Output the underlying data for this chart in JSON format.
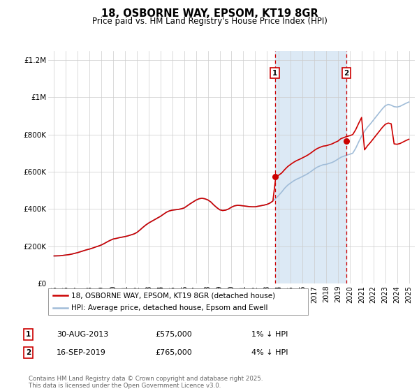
{
  "title": "18, OSBORNE WAY, EPSOM, KT19 8GR",
  "subtitle": "Price paid vs. HM Land Registry's House Price Index (HPI)",
  "title_fontsize": 10.5,
  "subtitle_fontsize": 8.5,
  "ylim": [
    0,
    1250000
  ],
  "xlim": [
    1994.5,
    2025.5
  ],
  "yticks": [
    0,
    200000,
    400000,
    600000,
    800000,
    1000000,
    1200000
  ],
  "ytick_labels": [
    "£0",
    "£200K",
    "£400K",
    "£600K",
    "£800K",
    "£1M",
    "£1.2M"
  ],
  "xticks": [
    1995,
    1996,
    1997,
    1998,
    1999,
    2000,
    2001,
    2002,
    2003,
    2004,
    2005,
    2006,
    2007,
    2008,
    2009,
    2010,
    2011,
    2012,
    2013,
    2014,
    2015,
    2016,
    2017,
    2018,
    2019,
    2020,
    2021,
    2022,
    2023,
    2024,
    2025
  ],
  "background_color": "#ffffff",
  "plot_bg_color": "#ffffff",
  "grid_color": "#cccccc",
  "shaded_region_color": "#dce9f5",
  "hpi_line_color": "#a0bcd8",
  "price_line_color": "#cc0000",
  "sale1_x": 2013.667,
  "sale1_y": 575000,
  "sale1_label": "1",
  "sale2_x": 2019.708,
  "sale2_y": 765000,
  "sale2_label": "2",
  "vline_color": "#cc0000",
  "legend_line1": "18, OSBORNE WAY, EPSOM, KT19 8GR (detached house)",
  "legend_line2": "HPI: Average price, detached house, Epsom and Ewell",
  "annotation1_date": "30-AUG-2013",
  "annotation1_price": "£575,000",
  "annotation1_hpi": "1% ↓ HPI",
  "annotation2_date": "16-SEP-2019",
  "annotation2_price": "£765,000",
  "annotation2_hpi": "4% ↓ HPI",
  "footer": "Contains HM Land Registry data © Crown copyright and database right 2025.\nThis data is licensed under the Open Government Licence v3.0.",
  "hpi_data_x": [
    1995.0,
    1995.25,
    1995.5,
    1995.75,
    1996.0,
    1996.25,
    1996.5,
    1996.75,
    1997.0,
    1997.25,
    1997.5,
    1997.75,
    1998.0,
    1998.25,
    1998.5,
    1998.75,
    1999.0,
    1999.25,
    1999.5,
    1999.75,
    2000.0,
    2000.25,
    2000.5,
    2000.75,
    2001.0,
    2001.25,
    2001.5,
    2001.75,
    2002.0,
    2002.25,
    2002.5,
    2002.75,
    2003.0,
    2003.25,
    2003.5,
    2003.75,
    2004.0,
    2004.25,
    2004.5,
    2004.75,
    2005.0,
    2005.25,
    2005.5,
    2005.75,
    2006.0,
    2006.25,
    2006.5,
    2006.75,
    2007.0,
    2007.25,
    2007.5,
    2007.75,
    2008.0,
    2008.25,
    2008.5,
    2008.75,
    2009.0,
    2009.25,
    2009.5,
    2009.75,
    2010.0,
    2010.25,
    2010.5,
    2010.75,
    2011.0,
    2011.25,
    2011.5,
    2011.75,
    2012.0,
    2012.25,
    2012.5,
    2012.75,
    2013.0,
    2013.25,
    2013.5,
    2013.75,
    2014.0,
    2014.25,
    2014.5,
    2014.75,
    2015.0,
    2015.25,
    2015.5,
    2015.75,
    2016.0,
    2016.25,
    2016.5,
    2016.75,
    2017.0,
    2017.25,
    2017.5,
    2017.75,
    2018.0,
    2018.25,
    2018.5,
    2018.75,
    2019.0,
    2019.25,
    2019.5,
    2019.75,
    2020.0,
    2020.25,
    2020.5,
    2020.75,
    2021.0,
    2021.25,
    2021.5,
    2021.75,
    2022.0,
    2022.25,
    2022.5,
    2022.75,
    2023.0,
    2023.25,
    2023.5,
    2023.75,
    2024.0,
    2024.25,
    2024.5,
    2024.75,
    2025.0
  ],
  "hpi_data_y": [
    148000,
    148500,
    149000,
    151000,
    153000,
    155000,
    158000,
    162000,
    166000,
    171000,
    176000,
    181000,
    185000,
    190000,
    196000,
    201000,
    207000,
    215000,
    224000,
    232000,
    239000,
    242000,
    246000,
    249000,
    252000,
    256000,
    261000,
    266000,
    274000,
    287000,
    301000,
    314000,
    325000,
    334000,
    343000,
    352000,
    361000,
    372000,
    383000,
    390000,
    394000,
    396000,
    398000,
    401000,
    406000,
    417000,
    428000,
    438000,
    448000,
    455000,
    458000,
    455000,
    449000,
    438000,
    422000,
    408000,
    396000,
    392000,
    394000,
    400000,
    410000,
    417000,
    420000,
    419000,
    417000,
    415000,
    413000,
    412000,
    412000,
    415000,
    418000,
    421000,
    425000,
    432000,
    443000,
    458000,
    474000,
    492000,
    512000,
    528000,
    540000,
    551000,
    560000,
    567000,
    575000,
    583000,
    592000,
    603000,
    615000,
    625000,
    632000,
    638000,
    640000,
    645000,
    650000,
    658000,
    668000,
    678000,
    684000,
    690000,
    694000,
    700000,
    726000,
    760000,
    792000,
    818000,
    840000,
    858000,
    878000,
    898000,
    918000,
    938000,
    955000,
    962000,
    958000,
    950000,
    948000,
    952000,
    960000,
    968000,
    975000
  ],
  "price_data_x": [
    1995.0,
    1995.25,
    1995.5,
    1995.75,
    1996.0,
    1996.25,
    1996.5,
    1996.75,
    1997.0,
    1997.25,
    1997.5,
    1997.75,
    1998.0,
    1998.25,
    1998.5,
    1998.75,
    1999.0,
    1999.25,
    1999.5,
    1999.75,
    2000.0,
    2000.25,
    2000.5,
    2000.75,
    2001.0,
    2001.25,
    2001.5,
    2001.75,
    2002.0,
    2002.25,
    2002.5,
    2002.75,
    2003.0,
    2003.25,
    2003.5,
    2003.75,
    2004.0,
    2004.25,
    2004.5,
    2004.75,
    2005.0,
    2005.25,
    2005.5,
    2005.75,
    2006.0,
    2006.25,
    2006.5,
    2006.75,
    2007.0,
    2007.25,
    2007.5,
    2007.75,
    2008.0,
    2008.25,
    2008.5,
    2008.75,
    2009.0,
    2009.25,
    2009.5,
    2009.75,
    2010.0,
    2010.25,
    2010.5,
    2010.75,
    2011.0,
    2011.25,
    2011.5,
    2011.75,
    2012.0,
    2012.25,
    2012.5,
    2012.75,
    2013.0,
    2013.25,
    2013.5,
    2013.75,
    2014.0,
    2014.25,
    2014.5,
    2014.75,
    2015.0,
    2015.25,
    2015.5,
    2015.75,
    2016.0,
    2016.25,
    2016.5,
    2016.75,
    2017.0,
    2017.25,
    2017.5,
    2017.75,
    2018.0,
    2018.25,
    2018.5,
    2018.75,
    2019.0,
    2019.25,
    2019.5,
    2019.75,
    2020.0,
    2020.25,
    2020.5,
    2020.75,
    2021.0,
    2021.25,
    2021.5,
    2021.75,
    2022.0,
    2022.25,
    2022.5,
    2022.75,
    2023.0,
    2023.25,
    2023.5,
    2023.75,
    2024.0,
    2024.25,
    2024.5,
    2024.75,
    2025.0
  ],
  "price_data_y": [
    148000,
    148500,
    149000,
    151000,
    153000,
    155000,
    158000,
    162000,
    166000,
    171000,
    176000,
    181000,
    185000,
    190000,
    196000,
    201000,
    207000,
    215000,
    224000,
    232000,
    239000,
    242000,
    246000,
    249000,
    252000,
    256000,
    261000,
    266000,
    274000,
    287000,
    301000,
    314000,
    325000,
    334000,
    343000,
    352000,
    361000,
    372000,
    383000,
    390000,
    394000,
    396000,
    398000,
    401000,
    406000,
    417000,
    428000,
    438000,
    448000,
    455000,
    458000,
    455000,
    449000,
    438000,
    422000,
    408000,
    396000,
    392000,
    394000,
    400000,
    410000,
    417000,
    420000,
    419000,
    417000,
    415000,
    413000,
    412000,
    412000,
    415000,
    418000,
    421000,
    425000,
    432000,
    443000,
    575000,
    582000,
    594000,
    612000,
    628000,
    640000,
    651000,
    660000,
    667000,
    675000,
    683000,
    692000,
    703000,
    715000,
    725000,
    732000,
    738000,
    740000,
    745000,
    750000,
    758000,
    765000,
    778000,
    784000,
    790000,
    794000,
    800000,
    826000,
    860000,
    892000,
    718000,
    740000,
    758000,
    778000,
    798000,
    818000,
    838000,
    855000,
    862000,
    858000,
    750000,
    748000,
    752000,
    760000,
    768000,
    775000
  ]
}
